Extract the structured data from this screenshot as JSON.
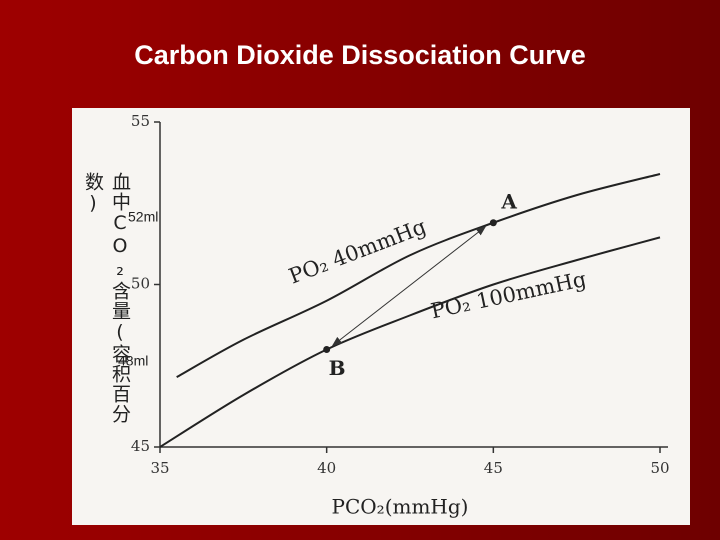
{
  "chart_data": {
    "type": "line",
    "title": "Carbon Dioxide Dissociation Curve",
    "x_label": "PCO₂(mmHg)",
    "y_label": "血中CO₂含量(容积百分数)",
    "xlim": [
      35,
      50
    ],
    "xticks": [
      35,
      40,
      45,
      50
    ],
    "ylim": [
      45,
      55
    ],
    "yticks": [
      45,
      50,
      55
    ],
    "series": [
      {
        "name": "PO₂ 40mmHg",
        "color": "#222222",
        "x": [
          35.5,
          37.5,
          40,
          42.5,
          45,
          47.5,
          50
        ],
        "values": [
          47.15,
          48.3,
          49.5,
          50.9,
          51.9,
          52.75,
          53.4
        ]
      },
      {
        "name": "PO₂ 100mmHg",
        "color": "#222222",
        "x": [
          35,
          37.5,
          40,
          42.5,
          45,
          47.5,
          50
        ],
        "values": [
          45.0,
          46.6,
          48.0,
          49.05,
          50.0,
          50.75,
          51.45
        ]
      }
    ],
    "points": [
      {
        "label": "A",
        "x": 45,
        "y": 51.9
      },
      {
        "label": "B",
        "x": 40,
        "y": 48.0
      }
    ],
    "annotations": [
      "52ml",
      "48ml"
    ]
  }
}
